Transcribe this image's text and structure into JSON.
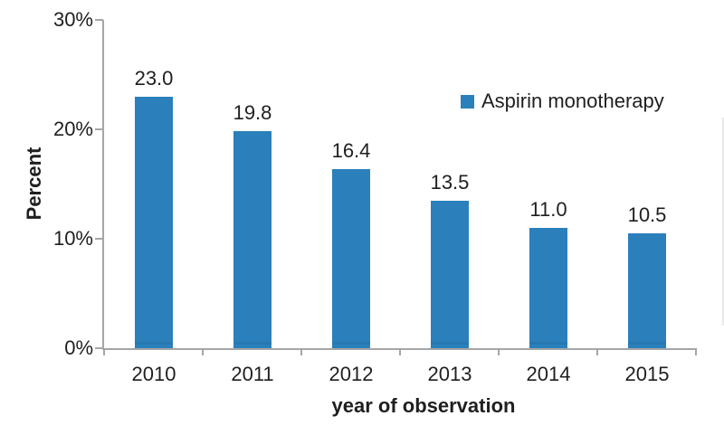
{
  "chart_data": {
    "type": "bar",
    "title": "",
    "categories": [
      "2010",
      "2011",
      "2012",
      "2013",
      "2014",
      "2015"
    ],
    "values": [
      23.0,
      19.8,
      16.4,
      13.5,
      11.0,
      10.5
    ],
    "data_labels": [
      "23.0",
      "19.8",
      "16.4",
      "13.5",
      "11.0",
      "10.5"
    ],
    "xlabel": "year of observation",
    "ylabel": "Percent",
    "ylim": [
      0,
      30
    ],
    "yticks": [
      {
        "value": 0,
        "label": "0%"
      },
      {
        "value": 10,
        "label": "10%"
      },
      {
        "value": 20,
        "label": "20%"
      },
      {
        "value": 30,
        "label": "30%"
      }
    ],
    "grid": false,
    "legend": {
      "position": "inside-top-right",
      "entries": [
        {
          "label": "Aspirin monotherapy",
          "color": "#2b80bc"
        }
      ]
    },
    "colors": {
      "bar": "#2b80bc",
      "axis": "#a6a6a6",
      "text": "#1f1f1f"
    }
  }
}
